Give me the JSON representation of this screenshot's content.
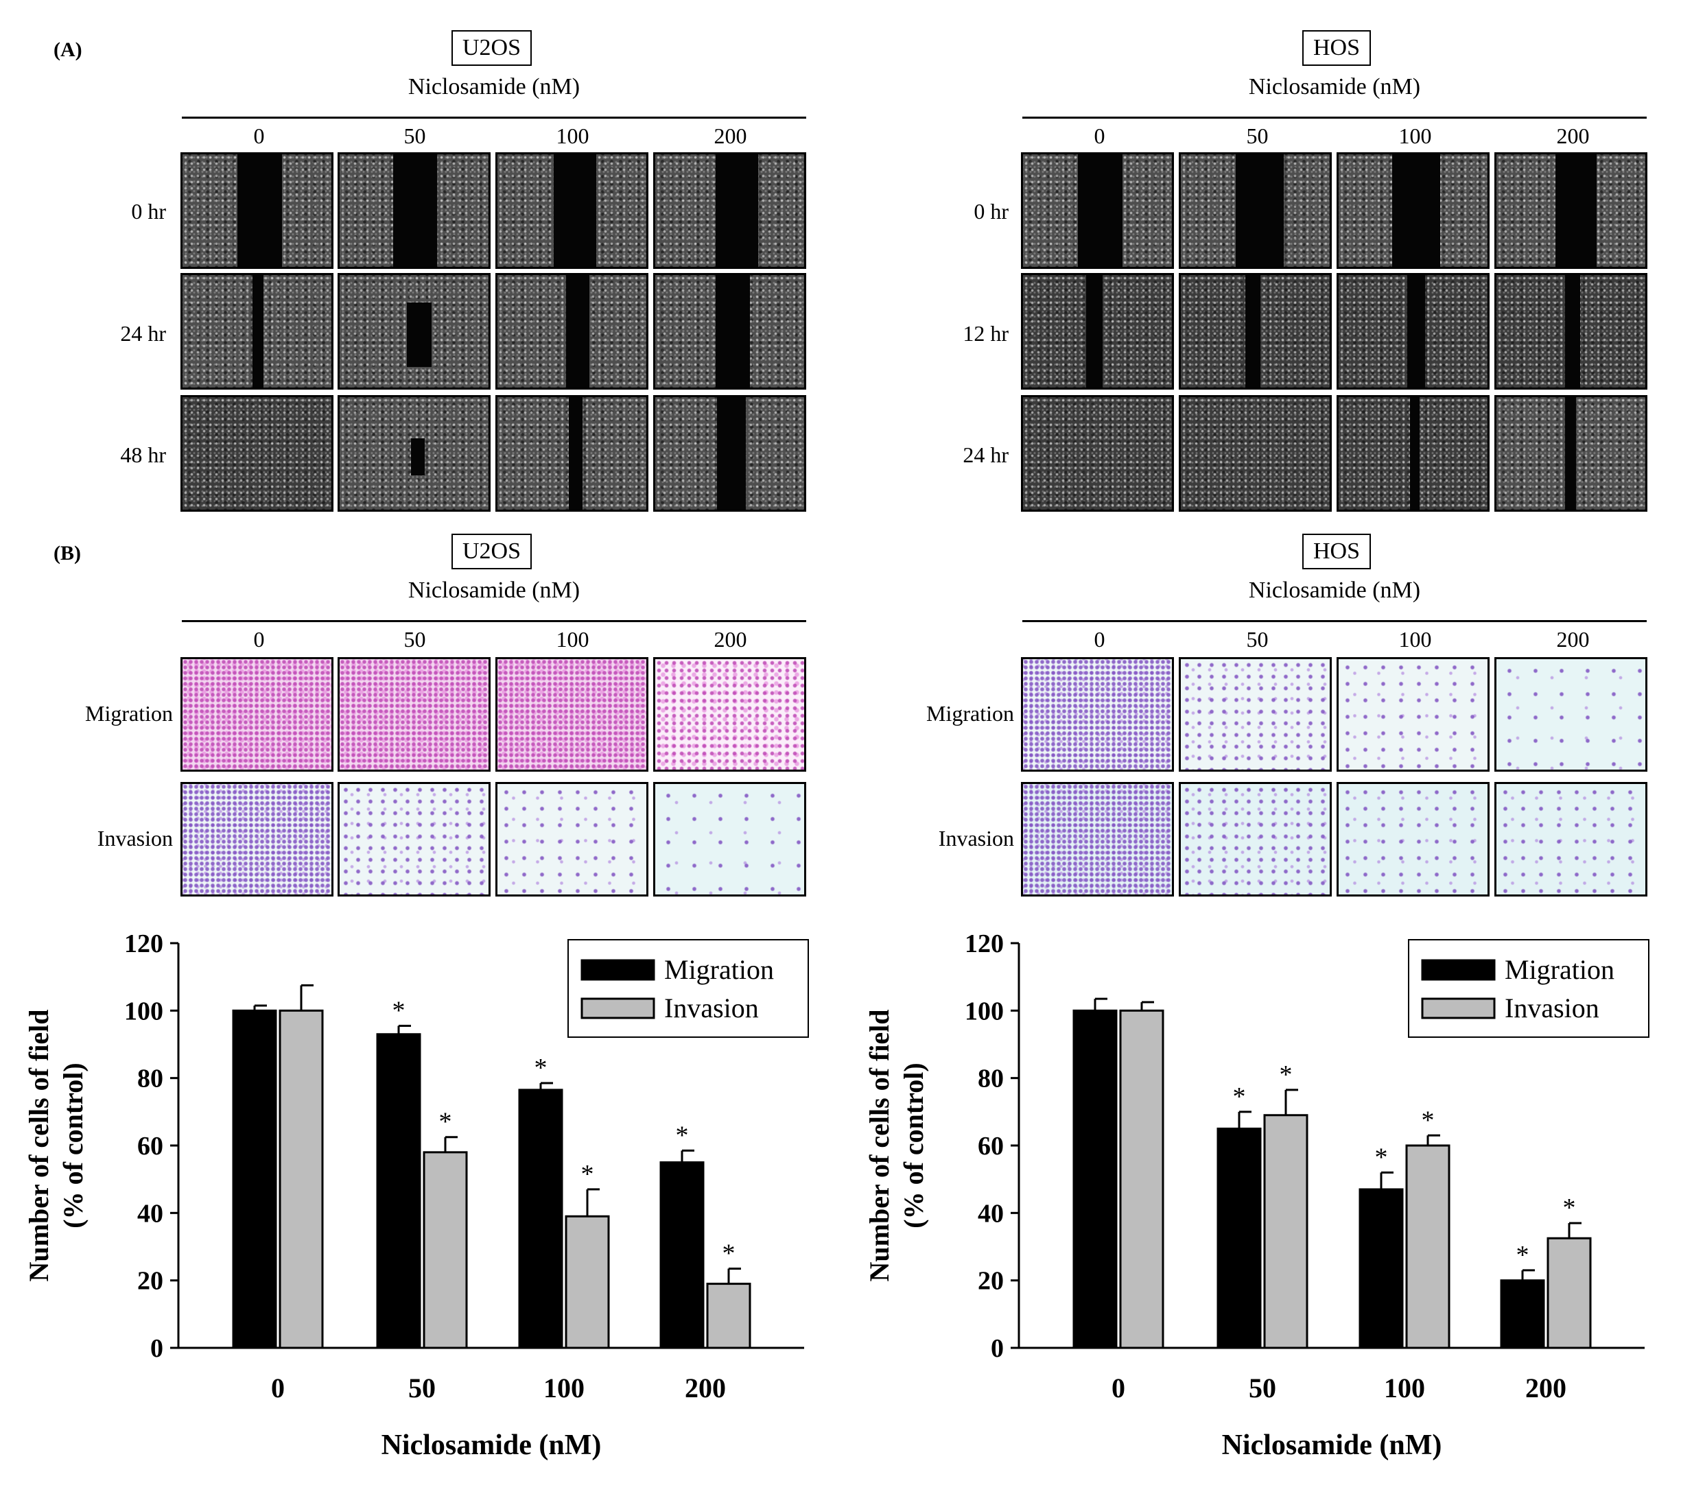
{
  "panel_labels": {
    "a": "(A)",
    "b": "(B)"
  },
  "cell_lines": {
    "left": "U2OS",
    "right": "HOS"
  },
  "treatment_label": "Niclosamide (nM)",
  "doses": [
    "0",
    "50",
    "100",
    "200"
  ],
  "wound_rows": {
    "left": [
      "0 hr",
      "24 hr",
      "48 hr"
    ],
    "right": [
      "0 hr",
      "12 hr",
      "24 hr"
    ]
  },
  "transwell_rows": [
    "Migration",
    "Invasion"
  ],
  "chart_data": [
    {
      "type": "bar",
      "cell_line": "U2OS",
      "categories": [
        "0",
        "50",
        "100",
        "200"
      ],
      "series": [
        {
          "name": "Migration",
          "color": "#000000",
          "values": [
            100,
            93,
            76.5,
            55
          ],
          "errors": [
            1.5,
            2.5,
            2,
            3.5
          ],
          "significant": [
            false,
            true,
            true,
            true
          ]
        },
        {
          "name": "Invasion",
          "color": "#bdbdbd",
          "values": [
            100,
            58,
            39,
            19
          ],
          "errors": [
            7.5,
            4.5,
            8,
            4.5
          ],
          "significant": [
            false,
            true,
            true,
            true
          ]
        }
      ],
      "significance_marker": "*",
      "xlabel": "Niclosamide (nM)",
      "ylabel": [
        "Number of cells of field",
        "(% of control)"
      ],
      "ylim": [
        0,
        120
      ],
      "yticks": [
        "0",
        "20",
        "40",
        "60",
        "80",
        "100",
        "120"
      ],
      "legend_position": "top-right"
    },
    {
      "type": "bar",
      "cell_line": "HOS",
      "categories": [
        "0",
        "50",
        "100",
        "200"
      ],
      "series": [
        {
          "name": "Migration",
          "color": "#000000",
          "values": [
            100,
            65,
            47,
            20
          ],
          "errors": [
            3.5,
            5,
            5,
            3
          ],
          "significant": [
            false,
            true,
            true,
            true
          ]
        },
        {
          "name": "Invasion",
          "color": "#bdbdbd",
          "values": [
            100,
            69,
            60,
            32.5
          ],
          "errors": [
            2.5,
            7.5,
            3,
            4.5
          ],
          "significant": [
            false,
            true,
            true,
            true
          ]
        }
      ],
      "significance_marker": "*",
      "xlabel": "Niclosamide (nM)",
      "ylabel": [
        "Number of cells of field",
        "(% of control)"
      ],
      "ylim": [
        0,
        120
      ],
      "yticks": [
        "0",
        "20",
        "40",
        "60",
        "80",
        "100",
        "120"
      ],
      "legend_position": "top-right"
    }
  ]
}
